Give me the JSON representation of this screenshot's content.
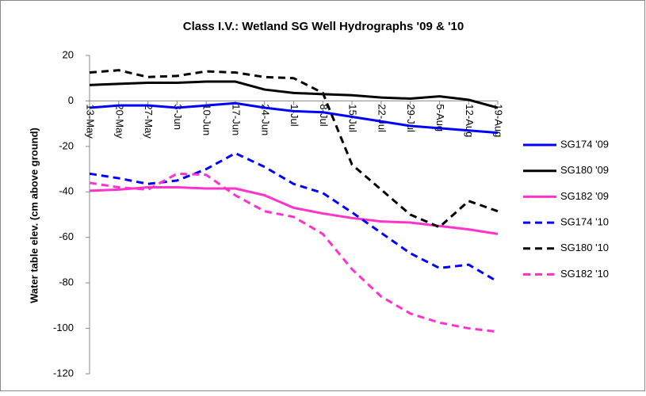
{
  "chart_data": {
    "type": "line",
    "title": "Class I.V.: Wetland SG Well Hydrographs '09 & '10",
    "y_label": "Water table elev. (cm above ground)",
    "categories": [
      "13-May",
      "20-May",
      "27-May",
      "3-Jun",
      "10-Jun",
      "17-Jun",
      "24-Jun",
      "1-Jul",
      "8-Jul",
      "15-Jul",
      "22-Jul",
      "29-Jul",
      "5-Aug",
      "12-Aug",
      "19-Aug"
    ],
    "ylim": [
      -120,
      20
    ],
    "yticks": [
      -120,
      -100,
      -80,
      -60,
      -40,
      -20,
      0,
      20
    ],
    "legend": "right",
    "series": [
      {
        "name": "SG174 '09",
        "color": "#0000ff",
        "dashed": false,
        "values": [
          -3,
          -2,
          -2,
          -3,
          -2,
          -1,
          -3,
          -4.5,
          -5,
          -7,
          -9,
          -11,
          -12,
          -13,
          -14
        ]
      },
      {
        "name": "SG180 '09",
        "color": "#000000",
        "dashed": false,
        "values": [
          7,
          7.5,
          8,
          8,
          8.5,
          8.5,
          5,
          3.5,
          3,
          2.5,
          1.5,
          1,
          2,
          0.5,
          -3
        ]
      },
      {
        "name": "SG182 '09",
        "color": "#ff33cc",
        "dashed": false,
        "values": [
          -39.5,
          -39,
          -38,
          -38,
          -38.5,
          -38.5,
          -41.5,
          -47,
          -49.5,
          -51.5,
          -53,
          -53.5,
          -55,
          -56.5,
          -58.5
        ]
      },
      {
        "name": "SG174 '10",
        "color": "#0000ff",
        "dashed": true,
        "values": [
          -32,
          -34,
          -36.5,
          -35,
          -30,
          -23,
          -29,
          -36.5,
          -40.5,
          -49,
          -58,
          -67,
          -73.5,
          -72,
          -79.5
        ]
      },
      {
        "name": "SG180 '10",
        "color": "#000000",
        "dashed": true,
        "values": [
          12.5,
          13.5,
          10.5,
          11,
          13,
          12.5,
          10.5,
          10,
          3.5,
          -28,
          -39,
          -50,
          -55.5,
          -44,
          -48.5
        ]
      },
      {
        "name": "SG182 '10",
        "color": "#ff33cc",
        "dashed": true,
        "values": [
          -36,
          -38,
          -39,
          -32,
          -32.5,
          -41.5,
          -48.5,
          -51,
          -58.5,
          -74,
          -86,
          -93.5,
          -97.5,
          -100,
          -101.5
        ]
      }
    ]
  }
}
